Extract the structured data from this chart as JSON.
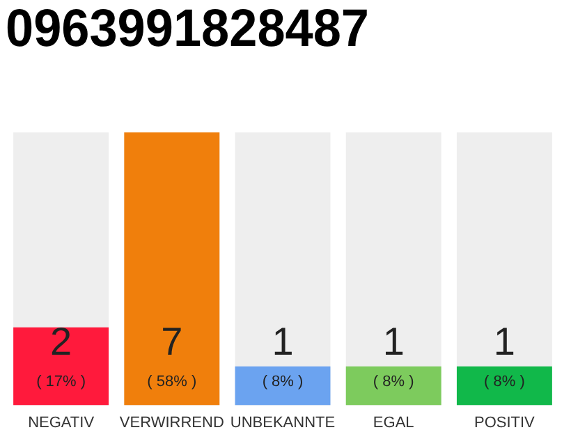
{
  "chart_data": {
    "type": "bar",
    "title": "0963991828487",
    "categories": [
      "NEGATIV",
      "VERWIRREND",
      "UNBEKANNTE",
      "EGAL",
      "POSITIV"
    ],
    "values": [
      2,
      7,
      1,
      1,
      1
    ],
    "colors": [
      "#ff1a3c",
      "#f07f0c",
      "#6ba3f0",
      "#7dcb5d",
      "#11b84a"
    ],
    "data_labels": true,
    "annotations": [
      "( 17% )",
      "( 58% )",
      "( 8% )",
      "( 8% )",
      "( 8% )"
    ],
    "grid": false,
    "legend": false
  }
}
